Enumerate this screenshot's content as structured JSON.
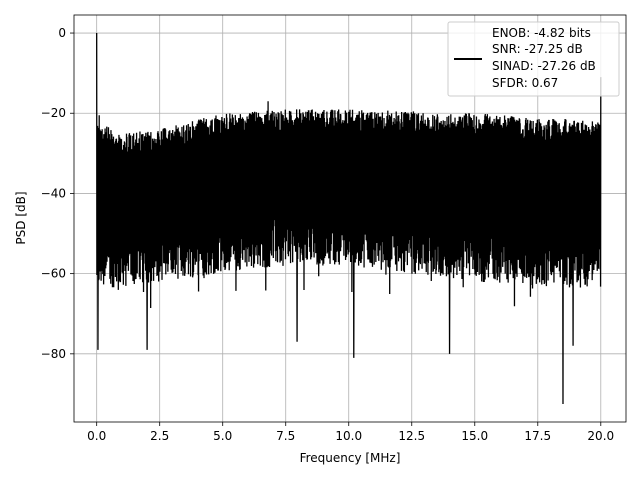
{
  "chart_data": {
    "type": "line",
    "title": "",
    "xlabel": "Frequency [MHz]",
    "ylabel": "PSD [dB]",
    "xlim": [
      -0.9,
      21.0
    ],
    "ylim": [
      -97,
      4.5
    ],
    "grid": true,
    "xticks": [
      0.0,
      2.5,
      5.0,
      7.5,
      10.0,
      12.5,
      15.0,
      17.5,
      20.0
    ],
    "xtick_labels": [
      "0.0",
      "2.5",
      "5.0",
      "7.5",
      "10.0",
      "12.5",
      "15.0",
      "17.5",
      "20.0"
    ],
    "yticks": [
      0,
      -20,
      -40,
      -60,
      -80
    ],
    "ytick_labels": [
      "0",
      "−20",
      "−40",
      "−60",
      "−80"
    ],
    "legend": {
      "placement": "top-right",
      "entries": [
        "ENOB: -4.82 bits",
        "SNR: -27.25 dB",
        "SINAD: -27.26 dB",
        "SFDR: 0.67"
      ]
    },
    "series": [
      {
        "color": "#000000",
        "x_range": [
          0.0,
          20.0
        ],
        "dc_spike": {
          "x": 0.0,
          "y": 0.0
        },
        "peaks": [
          {
            "x": 0.0,
            "y": 0.0
          },
          {
            "x": 0.1,
            "y": -20.5
          },
          {
            "x": 20.0,
            "y": -11.0
          },
          {
            "x": 6.8,
            "y": -17.0
          }
        ],
        "upper_envelope": [
          {
            "x": 0.0,
            "y": -22
          },
          {
            "x": 1.0,
            "y": -25
          },
          {
            "x": 2.5,
            "y": -24
          },
          {
            "x": 5.0,
            "y": -20
          },
          {
            "x": 7.5,
            "y": -19
          },
          {
            "x": 10.0,
            "y": -19
          },
          {
            "x": 12.5,
            "y": -19.5
          },
          {
            "x": 15.0,
            "y": -20
          },
          {
            "x": 17.5,
            "y": -21
          },
          {
            "x": 20.0,
            "y": -22
          }
        ],
        "lower_envelope": [
          {
            "x": 0.0,
            "y": -64
          },
          {
            "x": 2.5,
            "y": -62
          },
          {
            "x": 5.0,
            "y": -60
          },
          {
            "x": 7.5,
            "y": -58
          },
          {
            "x": 10.0,
            "y": -58
          },
          {
            "x": 12.5,
            "y": -60
          },
          {
            "x": 15.0,
            "y": -62
          },
          {
            "x": 17.5,
            "y": -63
          },
          {
            "x": 20.0,
            "y": -64
          }
        ],
        "troughs": [
          {
            "x": 0.05,
            "y": -79
          },
          {
            "x": 2.0,
            "y": -79
          },
          {
            "x": 7.95,
            "y": -77
          },
          {
            "x": 10.2,
            "y": -81
          },
          {
            "x": 14.0,
            "y": -80
          },
          {
            "x": 18.5,
            "y": -92.5
          },
          {
            "x": 18.9,
            "y": -78
          }
        ]
      }
    ]
  }
}
